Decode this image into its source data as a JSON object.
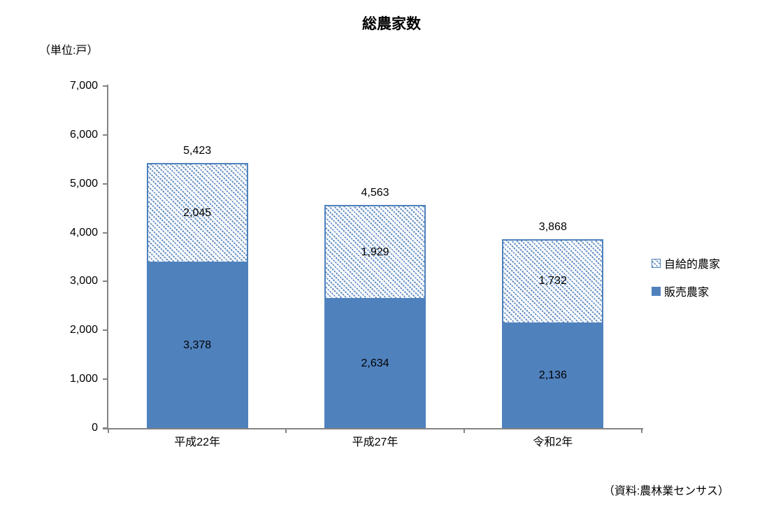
{
  "title": "総農家数",
  "unit_label": "（単位:戸）",
  "source_note": "（資料:農林業センサス）",
  "colors": {
    "series_blue": "#4f81bd",
    "hatch_background": "#ffffff",
    "axis_gray": "#848484",
    "text": "#000000"
  },
  "legend": {
    "position": "right",
    "items": [
      {
        "label": "自給的農家",
        "swatch": "hatched"
      },
      {
        "label": "販売農家",
        "swatch": "solid"
      }
    ]
  },
  "chart_data": {
    "type": "bar",
    "stacked": true,
    "title": "総農家数",
    "unit": "戸",
    "categories": [
      "平成22年",
      "平成27年",
      "令和2年"
    ],
    "series": [
      {
        "name": "販売農家",
        "style": "solid-blue",
        "values": [
          3378,
          2634,
          2136
        ]
      },
      {
        "name": "自給的農家",
        "style": "hatched-blue",
        "values": [
          2045,
          1929,
          1732
        ]
      }
    ],
    "totals": [
      5423,
      4563,
      3868
    ],
    "ylim": [
      0,
      7000
    ],
    "ytick_step": 1000,
    "ytick_labels": [
      "0",
      "1,000",
      "2,000",
      "3,000",
      "4,000",
      "5,000",
      "6,000",
      "7,000"
    ],
    "xlabel": "",
    "ylabel": "（単位:戸）",
    "grid": false,
    "legend_position": "right",
    "source": "（資料:農林業センサス）"
  }
}
